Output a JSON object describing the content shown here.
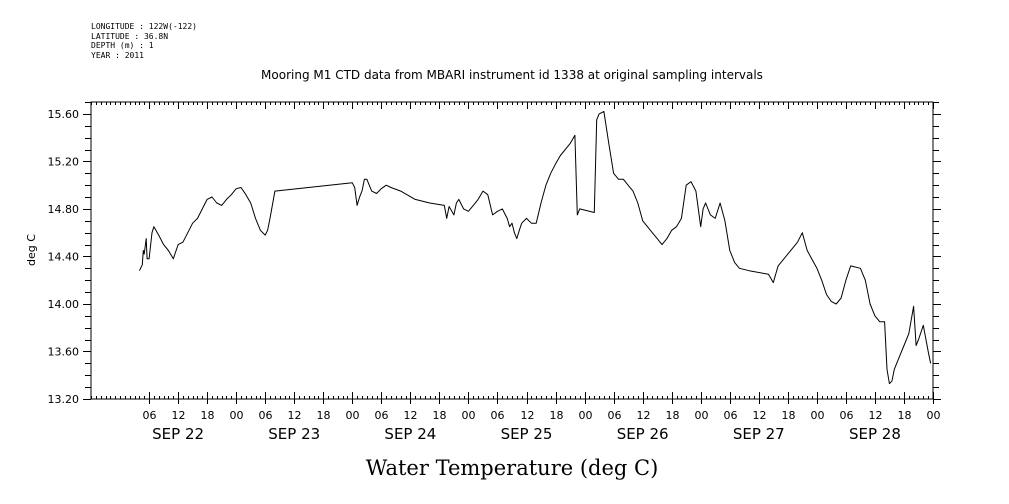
{
  "header": {
    "longitude": "LONGITUDE : 122W(-122)",
    "latitude": "LATITUDE : 36.8N",
    "depth": "DEPTH (m) : 1",
    "year": "YEAR : 2011"
  },
  "chart_data": {
    "type": "line",
    "title": "Mooring M1 CTD data from MBARI instrument id 1338 at original sampling intervals",
    "xlabel": "Water Temperature (deg C)",
    "ylabel": "deg C",
    "ylim": [
      13.2,
      15.7
    ],
    "xlim": [
      "2011-09-21T18:00",
      "2011-09-29T00:00"
    ],
    "y_ticks": [
      "13.20",
      "13.60",
      "14.00",
      "14.40",
      "14.80",
      "15.20",
      "15.60"
    ],
    "hour_ticks": [
      {
        "t": "2011-09-22T06:00",
        "label": "06"
      },
      {
        "t": "2011-09-22T12:00",
        "label": "12"
      },
      {
        "t": "2011-09-22T18:00",
        "label": "18"
      },
      {
        "t": "2011-09-23T00:00",
        "label": "00"
      },
      {
        "t": "2011-09-23T06:00",
        "label": "06"
      },
      {
        "t": "2011-09-23T12:00",
        "label": "12"
      },
      {
        "t": "2011-09-23T18:00",
        "label": "18"
      },
      {
        "t": "2011-09-24T00:00",
        "label": "00"
      },
      {
        "t": "2011-09-24T06:00",
        "label": "06"
      },
      {
        "t": "2011-09-24T12:00",
        "label": "12"
      },
      {
        "t": "2011-09-24T18:00",
        "label": "18"
      },
      {
        "t": "2011-09-25T00:00",
        "label": "00"
      },
      {
        "t": "2011-09-25T06:00",
        "label": "06"
      },
      {
        "t": "2011-09-25T12:00",
        "label": "12"
      },
      {
        "t": "2011-09-25T18:00",
        "label": "18"
      },
      {
        "t": "2011-09-26T00:00",
        "label": "00"
      },
      {
        "t": "2011-09-26T06:00",
        "label": "06"
      },
      {
        "t": "2011-09-26T12:00",
        "label": "12"
      },
      {
        "t": "2011-09-26T18:00",
        "label": "18"
      },
      {
        "t": "2011-09-27T00:00",
        "label": "00"
      },
      {
        "t": "2011-09-27T06:00",
        "label": "06"
      },
      {
        "t": "2011-09-27T12:00",
        "label": "12"
      },
      {
        "t": "2011-09-27T18:00",
        "label": "18"
      },
      {
        "t": "2011-09-28T00:00",
        "label": "00"
      },
      {
        "t": "2011-09-28T06:00",
        "label": "06"
      },
      {
        "t": "2011-09-28T12:00",
        "label": "12"
      },
      {
        "t": "2011-09-28T18:00",
        "label": "18"
      },
      {
        "t": "2011-09-29T00:00",
        "label": "00"
      }
    ],
    "day_labels": [
      {
        "t": "2011-09-22T12:00",
        "label": "SEP 22"
      },
      {
        "t": "2011-09-23T12:00",
        "label": "SEP 23"
      },
      {
        "t": "2011-09-24T12:00",
        "label": "SEP 24"
      },
      {
        "t": "2011-09-25T12:00",
        "label": "SEP 25"
      },
      {
        "t": "2011-09-26T12:00",
        "label": "SEP 26"
      },
      {
        "t": "2011-09-27T12:00",
        "label": "SEP 27"
      },
      {
        "t": "2011-09-28T12:00",
        "label": "SEP 28"
      }
    ],
    "grid": false,
    "series": [
      {
        "color": "#000000",
        "points": [
          [
            "2011-09-22T04:00",
            14.28
          ],
          [
            "2011-09-22T04:36",
            14.33
          ],
          [
            "2011-09-22T04:48",
            14.45
          ],
          [
            "2011-09-22T05:00",
            14.42
          ],
          [
            "2011-09-22T05:24",
            14.55
          ],
          [
            "2011-09-22T05:36",
            14.38
          ],
          [
            "2011-09-22T06:00",
            14.38
          ],
          [
            "2011-09-22T06:36",
            14.6
          ],
          [
            "2011-09-22T07:00",
            14.65
          ],
          [
            "2011-09-22T08:00",
            14.58
          ],
          [
            "2011-09-22T09:00",
            14.5
          ],
          [
            "2011-09-22T10:00",
            14.45
          ],
          [
            "2011-09-22T11:00",
            14.38
          ],
          [
            "2011-09-22T12:00",
            14.5
          ],
          [
            "2011-09-22T13:00",
            14.52
          ],
          [
            "2011-09-22T14:00",
            14.6
          ],
          [
            "2011-09-22T15:00",
            14.68
          ],
          [
            "2011-09-22T16:00",
            14.72
          ],
          [
            "2011-09-22T17:00",
            14.8
          ],
          [
            "2011-09-22T18:00",
            14.88
          ],
          [
            "2011-09-22T19:00",
            14.9
          ],
          [
            "2011-09-22T20:00",
            14.85
          ],
          [
            "2011-09-22T21:00",
            14.83
          ],
          [
            "2011-09-22T22:00",
            14.88
          ],
          [
            "2011-09-22T23:00",
            14.92
          ],
          [
            "2011-09-23T00:00",
            14.97
          ],
          [
            "2011-09-23T01:00",
            14.98
          ],
          [
            "2011-09-23T02:00",
            14.92
          ],
          [
            "2011-09-23T03:00",
            14.85
          ],
          [
            "2011-09-23T04:00",
            14.72
          ],
          [
            "2011-09-23T05:00",
            14.62
          ],
          [
            "2011-09-23T06:00",
            14.58
          ],
          [
            "2011-09-23T06:30",
            14.62
          ],
          [
            "2011-09-23T07:00",
            14.72
          ],
          [
            "2011-09-23T08:00",
            14.95
          ],
          [
            "2011-09-24T00:00",
            15.02
          ],
          [
            "2011-09-24T00:30",
            14.98
          ],
          [
            "2011-09-24T01:00",
            14.83
          ],
          [
            "2011-09-24T01:30",
            14.9
          ],
          [
            "2011-09-24T02:00",
            14.95
          ],
          [
            "2011-09-24T02:30",
            15.05
          ],
          [
            "2011-09-24T03:00",
            15.05
          ],
          [
            "2011-09-24T04:00",
            14.95
          ],
          [
            "2011-09-24T05:00",
            14.93
          ],
          [
            "2011-09-24T06:00",
            14.97
          ],
          [
            "2011-09-24T07:00",
            15.0
          ],
          [
            "2011-09-24T08:00",
            14.98
          ],
          [
            "2011-09-24T10:00",
            14.95
          ],
          [
            "2011-09-24T13:00",
            14.88
          ],
          [
            "2011-09-24T16:00",
            14.85
          ],
          [
            "2011-09-24T19:00",
            14.83
          ],
          [
            "2011-09-24T19:30",
            14.72
          ],
          [
            "2011-09-24T20:00",
            14.82
          ],
          [
            "2011-09-24T21:00",
            14.75
          ],
          [
            "2011-09-24T21:30",
            14.85
          ],
          [
            "2011-09-24T22:00",
            14.88
          ],
          [
            "2011-09-24T23:00",
            14.8
          ],
          [
            "2011-09-25T00:00",
            14.78
          ],
          [
            "2011-09-25T01:00",
            14.83
          ],
          [
            "2011-09-25T02:00",
            14.88
          ],
          [
            "2011-09-25T03:00",
            14.95
          ],
          [
            "2011-09-25T04:00",
            14.92
          ],
          [
            "2011-09-25T05:00",
            14.75
          ],
          [
            "2011-09-25T06:00",
            14.78
          ],
          [
            "2011-09-25T07:00",
            14.8
          ],
          [
            "2011-09-25T08:00",
            14.72
          ],
          [
            "2011-09-25T08:30",
            14.65
          ],
          [
            "2011-09-25T09:00",
            14.68
          ],
          [
            "2011-09-25T09:30",
            14.6
          ],
          [
            "2011-09-25T10:00",
            14.55
          ],
          [
            "2011-09-25T10:30",
            14.62
          ],
          [
            "2011-09-25T11:00",
            14.68
          ],
          [
            "2011-09-25T12:00",
            14.72
          ],
          [
            "2011-09-25T13:00",
            14.68
          ],
          [
            "2011-09-25T14:00",
            14.68
          ],
          [
            "2011-09-25T15:00",
            14.85
          ],
          [
            "2011-09-25T16:00",
            15.0
          ],
          [
            "2011-09-25T17:00",
            15.1
          ],
          [
            "2011-09-25T18:00",
            15.18
          ],
          [
            "2011-09-25T19:00",
            15.25
          ],
          [
            "2011-09-25T21:00",
            15.35
          ],
          [
            "2011-09-25T22:00",
            15.42
          ],
          [
            "2011-09-25T22:30",
            14.75
          ],
          [
            "2011-09-25T23:00",
            14.8
          ],
          [
            "2011-09-26T02:00",
            14.77
          ],
          [
            "2011-09-26T02:30",
            15.55
          ],
          [
            "2011-09-26T03:00",
            15.6
          ],
          [
            "2011-09-26T04:00",
            15.62
          ],
          [
            "2011-09-26T05:00",
            15.35
          ],
          [
            "2011-09-26T06:00",
            15.1
          ],
          [
            "2011-09-26T07:00",
            15.05
          ],
          [
            "2011-09-26T08:00",
            15.05
          ],
          [
            "2011-09-26T09:00",
            15.0
          ],
          [
            "2011-09-26T10:00",
            14.95
          ],
          [
            "2011-09-26T11:00",
            14.85
          ],
          [
            "2011-09-26T12:00",
            14.7
          ],
          [
            "2011-09-26T13:00",
            14.65
          ],
          [
            "2011-09-26T14:00",
            14.6
          ],
          [
            "2011-09-26T15:00",
            14.55
          ],
          [
            "2011-09-26T16:00",
            14.5
          ],
          [
            "2011-09-26T17:00",
            14.55
          ],
          [
            "2011-09-26T18:00",
            14.62
          ],
          [
            "2011-09-26T19:00",
            14.65
          ],
          [
            "2011-09-26T20:00",
            14.72
          ],
          [
            "2011-09-26T21:00",
            15.0
          ],
          [
            "2011-09-26T22:00",
            15.03
          ],
          [
            "2011-09-26T23:00",
            14.95
          ],
          [
            "2011-09-27T00:00",
            14.65
          ],
          [
            "2011-09-27T00:30",
            14.8
          ],
          [
            "2011-09-27T01:00",
            14.85
          ],
          [
            "2011-09-27T02:00",
            14.75
          ],
          [
            "2011-09-27T03:00",
            14.72
          ],
          [
            "2011-09-27T04:00",
            14.85
          ],
          [
            "2011-09-27T05:00",
            14.7
          ],
          [
            "2011-09-27T06:00",
            14.45
          ],
          [
            "2011-09-27T07:00",
            14.35
          ],
          [
            "2011-09-27T08:00",
            14.3
          ],
          [
            "2011-09-27T10:00",
            14.28
          ],
          [
            "2011-09-27T14:00",
            14.25
          ],
          [
            "2011-09-27T15:00",
            14.18
          ],
          [
            "2011-09-27T16:00",
            14.32
          ],
          [
            "2011-09-27T18:00",
            14.42
          ],
          [
            "2011-09-27T20:00",
            14.52
          ],
          [
            "2011-09-27T21:00",
            14.6
          ],
          [
            "2011-09-27T22:00",
            14.45
          ],
          [
            "2011-09-28T00:00",
            14.3
          ],
          [
            "2011-09-28T01:00",
            14.2
          ],
          [
            "2011-09-28T02:00",
            14.08
          ],
          [
            "2011-09-28T03:00",
            14.02
          ],
          [
            "2011-09-28T04:00",
            14.0
          ],
          [
            "2011-09-28T05:00",
            14.05
          ],
          [
            "2011-09-28T06:00",
            14.2
          ],
          [
            "2011-09-28T07:00",
            14.32
          ],
          [
            "2011-09-28T09:00",
            14.3
          ],
          [
            "2011-09-28T10:00",
            14.2
          ],
          [
            "2011-09-28T11:00",
            14.0
          ],
          [
            "2011-09-28T12:00",
            13.9
          ],
          [
            "2011-09-28T13:00",
            13.85
          ],
          [
            "2011-09-28T14:00",
            13.85
          ],
          [
            "2011-09-28T14:30",
            13.45
          ],
          [
            "2011-09-28T15:00",
            13.33
          ],
          [
            "2011-09-28T15:30",
            13.35
          ],
          [
            "2011-09-28T16:00",
            13.45
          ],
          [
            "2011-09-28T17:00",
            13.55
          ],
          [
            "2011-09-28T18:00",
            13.65
          ],
          [
            "2011-09-28T19:00",
            13.75
          ],
          [
            "2011-09-28T20:00",
            13.98
          ],
          [
            "2011-09-28T20:30",
            13.65
          ],
          [
            "2011-09-28T21:00",
            13.7
          ],
          [
            "2011-09-28T22:00",
            13.82
          ],
          [
            "2011-09-28T23:00",
            13.6
          ],
          [
            "2011-09-28T23:30",
            13.5
          ]
        ]
      }
    ]
  }
}
